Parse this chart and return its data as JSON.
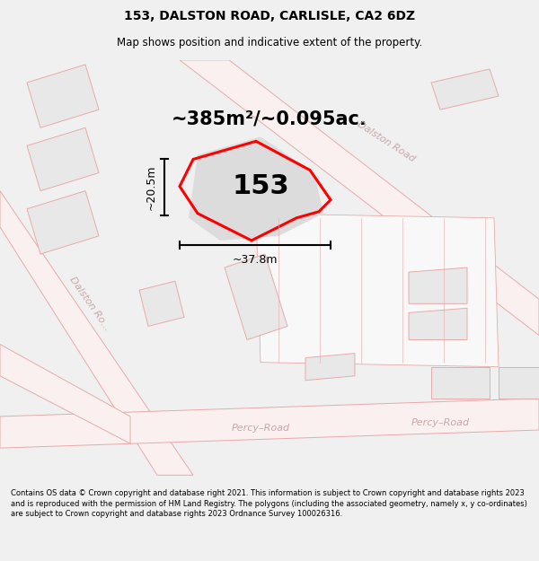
{
  "title": "153, DALSTON ROAD, CARLISLE, CA2 6DZ",
  "subtitle": "Map shows position and indicative extent of the property.",
  "footer": "Contains OS data © Crown copyright and database right 2021. This information is subject to Crown copyright and database rights 2023 and is reproduced with the permission of HM Land Registry. The polygons (including the associated geometry, namely x, y co-ordinates) are subject to Crown copyright and database rights 2023 Ordnance Survey 100026316.",
  "area_label": "~385m²/~0.095ac.",
  "property_label": "153",
  "dim_h": "~20.5m",
  "dim_w": "~37.8m",
  "road_color": "#e8aaaa",
  "bldg_fill": "#e8e8e8",
  "bldg_edge": "#cccccc",
  "road_text_color": "#ccaaaa",
  "map_bg": "#ffffff",
  "title_fontsize": 10,
  "subtitle_fontsize": 8.5,
  "footer_fontsize": 6.0
}
